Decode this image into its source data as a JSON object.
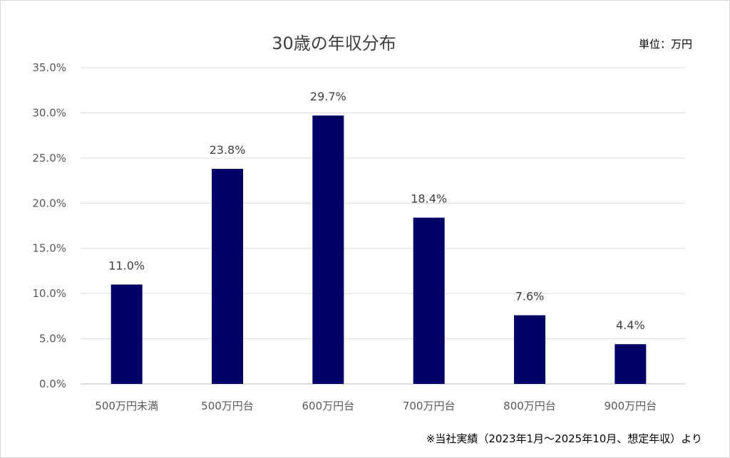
{
  "chart_data": {
    "type": "bar",
    "title": "30歳の年収分布",
    "unit_label": "単位：万円",
    "footnote": "※当社実績（2023年1月～2025年10月、想定年収）より",
    "categories": [
      "500万円未満",
      "500万円台",
      "600万円台",
      "700万円台",
      "800万円台",
      "900万円台"
    ],
    "values": [
      11.0,
      23.8,
      29.7,
      18.4,
      7.6,
      4.4
    ],
    "value_labels": [
      "11.0%",
      "23.8%",
      "29.7%",
      "18.4%",
      "7.6%",
      "4.4%"
    ],
    "y_ticks": [
      "0.0%",
      "5.0%",
      "10.0%",
      "15.0%",
      "20.0%",
      "25.0%",
      "30.0%",
      "35.0%"
    ],
    "ylim": [
      0,
      35
    ],
    "grid": true,
    "legend": "none",
    "bar_color": "#000066"
  }
}
